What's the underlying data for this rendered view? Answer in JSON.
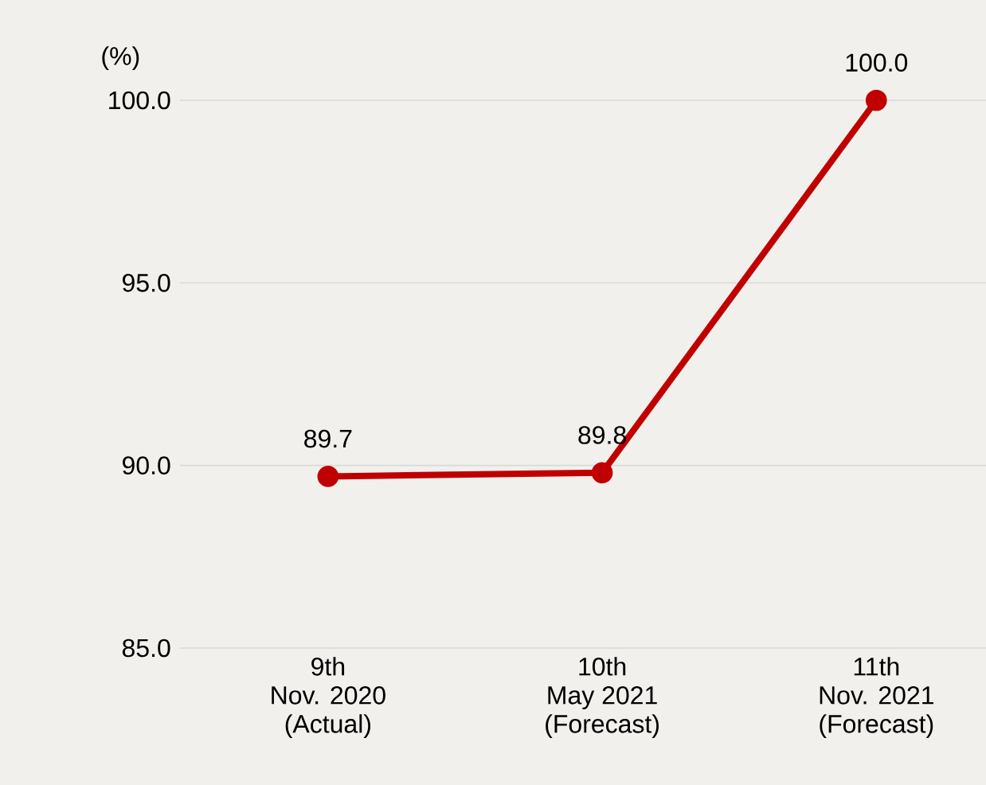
{
  "chart_data": {
    "type": "line",
    "ylabel": "(%)",
    "categories": [
      "9th\nNov. 2020\n(Actual)",
      "10th\nMay 2021\n(Forecast)",
      "11th\nNov. 2021\n(Forecast)"
    ],
    "values": [
      89.7,
      89.8,
      100.0
    ],
    "color": "#c00000",
    "marker": "circle",
    "line_style": "solid",
    "ylim": [
      85,
      100
    ],
    "yticks": [
      {
        "value": 85,
        "label": "85.0"
      },
      {
        "value": 90,
        "label": "90.0"
      },
      {
        "value": 95,
        "label": "95.0"
      },
      {
        "value": 100,
        "label": "100.0"
      }
    ],
    "grid": "y",
    "value_labels": [
      "89.7",
      "89.8",
      "100.0"
    ]
  }
}
